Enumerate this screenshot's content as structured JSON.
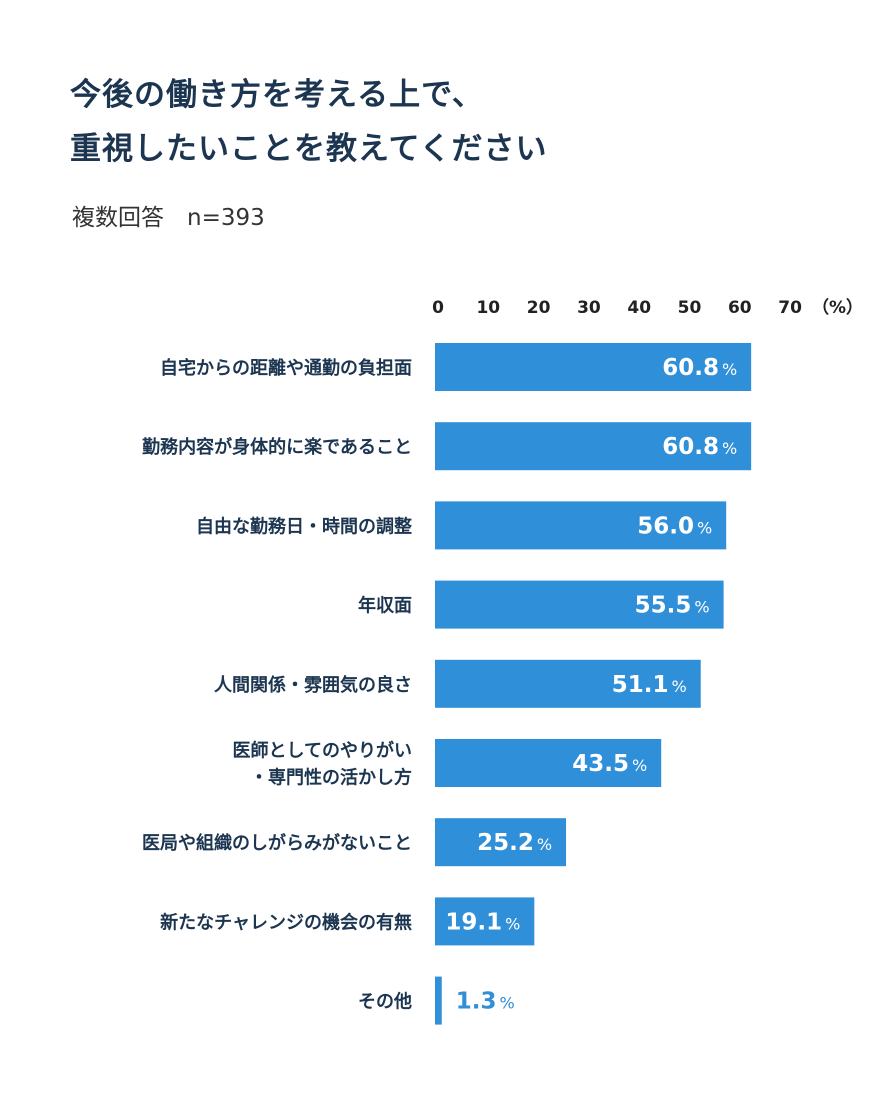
{
  "chart_data": {
    "type": "bar",
    "orientation": "horizontal",
    "title": [
      "今後の働き方を考える上で、",
      "重視したいことを教えてください"
    ],
    "subtitle": "複数回答　n=393",
    "unit_label": "（%）",
    "value_suffix": "%",
    "xlim": [
      0,
      70
    ],
    "xticks": [
      0,
      10,
      20,
      30,
      40,
      50,
      60,
      70
    ],
    "grid": false,
    "bar_color": "#2f8fd8",
    "categories": [
      [
        "自宅からの距離や通勤の負担面"
      ],
      [
        "勤務内容が身体的に楽であること"
      ],
      [
        "自由な勤務日・時間の調整"
      ],
      [
        "年収面"
      ],
      [
        "人間関係・雰囲気の良さ"
      ],
      [
        "医師としてのやりがい",
        "・専門性の活かし方"
      ],
      [
        "医局や組織のしがらみがないこと"
      ],
      [
        "新たなチャレンジの機会の有無"
      ],
      [
        "その他"
      ]
    ],
    "values": [
      60.8,
      60.8,
      56.0,
      55.5,
      51.1,
      43.5,
      25.2,
      19.1,
      1.3
    ]
  }
}
